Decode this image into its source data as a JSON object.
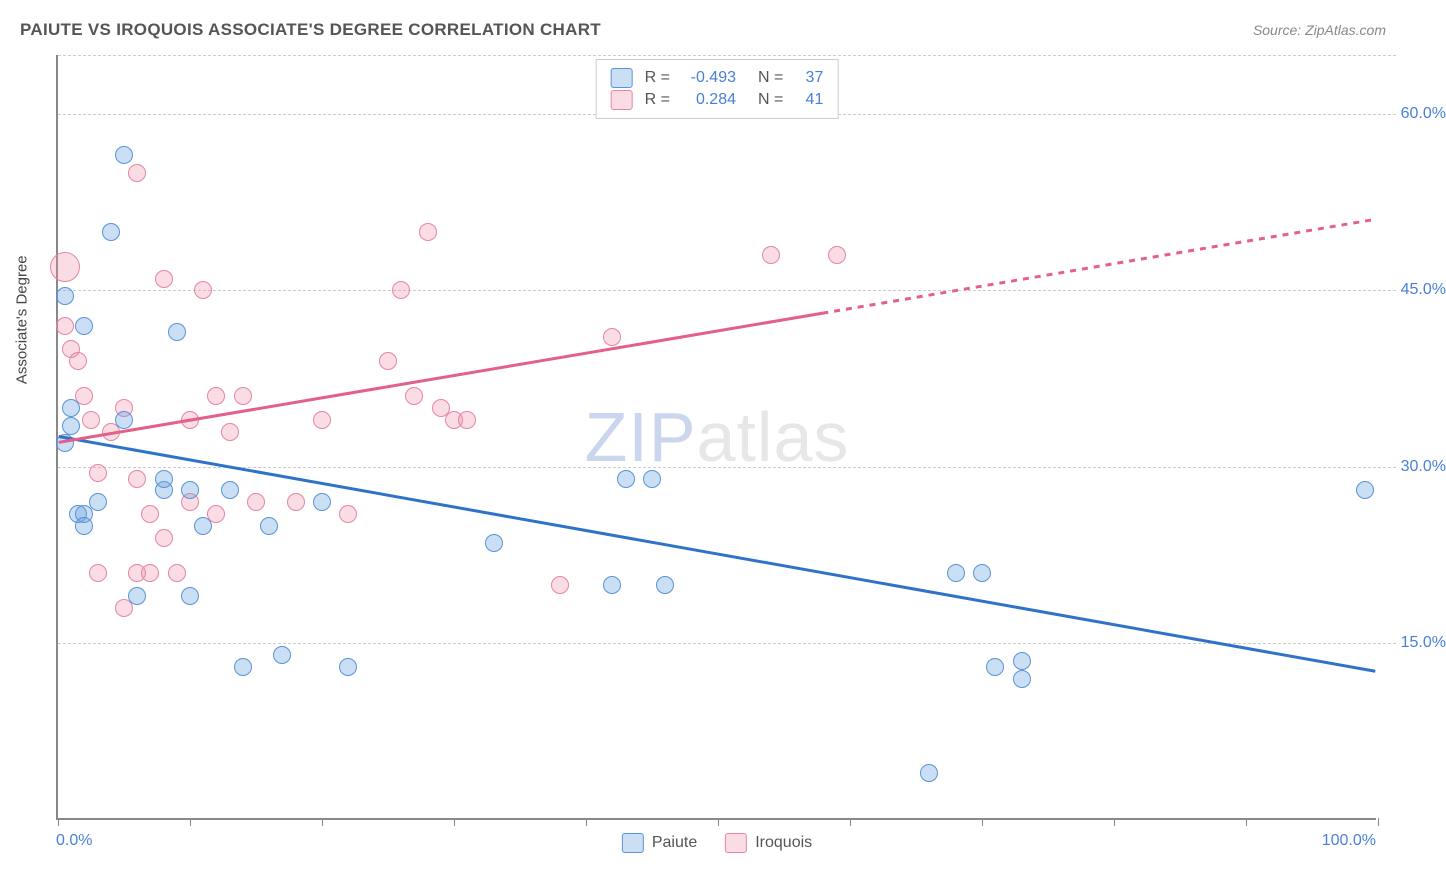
{
  "title": "PAIUTE VS IROQUOIS ASSOCIATE'S DEGREE CORRELATION CHART",
  "source": "Source: ZipAtlas.com",
  "y_axis_title": "Associate's Degree",
  "x_axis": {
    "min": 0,
    "max": 100,
    "label_left": "0.0%",
    "label_right": "100.0%",
    "ticks": [
      0,
      10,
      20,
      30,
      40,
      50,
      60,
      70,
      80,
      90,
      100
    ]
  },
  "y_axis": {
    "min": 0,
    "max": 65,
    "grid": [
      15,
      30,
      45,
      60,
      65
    ],
    "labels": {
      "15": "15.0%",
      "30": "30.0%",
      "45": "45.0%",
      "60": "60.0%"
    }
  },
  "colors": {
    "paiute_fill": "rgba(102,163,224,0.35)",
    "paiute_stroke": "#5a93d6",
    "iroquois_fill": "rgba(236,140,164,0.30)",
    "iroquois_stroke": "#e686a0",
    "blue_line": "#2f73c9",
    "pink_line": "#e36088",
    "grid": "#cccccc",
    "axis": "#888888",
    "tick_text": "#4a7fd6"
  },
  "legend_top": [
    {
      "swatch_fill": "rgba(102,163,224,0.35)",
      "swatch_stroke": "#5a93d6",
      "r": "-0.493",
      "n": "37"
    },
    {
      "swatch_fill": "rgba(236,140,164,0.30)",
      "swatch_stroke": "#e686a0",
      "r": "0.284",
      "n": "41"
    }
  ],
  "legend_bottom": [
    {
      "label": "Paiute",
      "swatch_fill": "rgba(102,163,224,0.35)",
      "swatch_stroke": "#5a93d6"
    },
    {
      "label": "Iroquois",
      "swatch_fill": "rgba(236,140,164,0.30)",
      "swatch_stroke": "#e686a0"
    }
  ],
  "trend_lines": {
    "blue": {
      "x1": 0,
      "y1": 32.5,
      "x2": 100,
      "y2": 12.5
    },
    "pink_solid": {
      "x1": 0,
      "y1": 32.0,
      "x2": 58,
      "y2": 43.0
    },
    "pink_dash": {
      "x1": 58,
      "y1": 43.0,
      "x2": 100,
      "y2": 51.0
    }
  },
  "point_radius": 9,
  "series": {
    "paiute": [
      {
        "x": 0.5,
        "y": 44.5
      },
      {
        "x": 2,
        "y": 42
      },
      {
        "x": 1,
        "y": 33.5
      },
      {
        "x": 1,
        "y": 35
      },
      {
        "x": 1.5,
        "y": 26
      },
      {
        "x": 2,
        "y": 26
      },
      {
        "x": 2,
        "y": 25
      },
      {
        "x": 5,
        "y": 56.5
      },
      {
        "x": 4,
        "y": 50
      },
      {
        "x": 5,
        "y": 34
      },
      {
        "x": 6,
        "y": 19
      },
      {
        "x": 8,
        "y": 28
      },
      {
        "x": 8,
        "y": 29
      },
      {
        "x": 9,
        "y": 41.5
      },
      {
        "x": 10,
        "y": 28
      },
      {
        "x": 10,
        "y": 19
      },
      {
        "x": 11,
        "y": 25
      },
      {
        "x": 13,
        "y": 28
      },
      {
        "x": 14,
        "y": 13
      },
      {
        "x": 16,
        "y": 25
      },
      {
        "x": 17,
        "y": 14
      },
      {
        "x": 20,
        "y": 27
      },
      {
        "x": 22,
        "y": 13
      },
      {
        "x": 33,
        "y": 23.5
      },
      {
        "x": 42,
        "y": 20
      },
      {
        "x": 43,
        "y": 29
      },
      {
        "x": 45,
        "y": 29
      },
      {
        "x": 46,
        "y": 20
      },
      {
        "x": 68,
        "y": 21
      },
      {
        "x": 70,
        "y": 21
      },
      {
        "x": 71,
        "y": 13
      },
      {
        "x": 73,
        "y": 13.5
      },
      {
        "x": 73,
        "y": 12
      },
      {
        "x": 66,
        "y": 4
      },
      {
        "x": 99,
        "y": 28
      },
      {
        "x": 0.5,
        "y": 32
      },
      {
        "x": 3,
        "y": 27
      }
    ],
    "iroquois": [
      {
        "x": 0.5,
        "y": 47,
        "r": 15
      },
      {
        "x": 0.5,
        "y": 42
      },
      {
        "x": 1,
        "y": 40
      },
      {
        "x": 1.5,
        "y": 39
      },
      {
        "x": 2,
        "y": 36
      },
      {
        "x": 2.5,
        "y": 34
      },
      {
        "x": 3,
        "y": 21
      },
      {
        "x": 3,
        "y": 29.5
      },
      {
        "x": 4,
        "y": 33
      },
      {
        "x": 5,
        "y": 35
      },
      {
        "x": 5,
        "y": 18
      },
      {
        "x": 6,
        "y": 55
      },
      {
        "x": 6,
        "y": 29
      },
      {
        "x": 6,
        "y": 21
      },
      {
        "x": 7,
        "y": 21
      },
      {
        "x": 7,
        "y": 26
      },
      {
        "x": 8,
        "y": 46
      },
      {
        "x": 8,
        "y": 24
      },
      {
        "x": 9,
        "y": 21
      },
      {
        "x": 10,
        "y": 34
      },
      {
        "x": 10,
        "y": 27
      },
      {
        "x": 11,
        "y": 45
      },
      {
        "x": 12,
        "y": 36
      },
      {
        "x": 12,
        "y": 26
      },
      {
        "x": 13,
        "y": 33
      },
      {
        "x": 14,
        "y": 36
      },
      {
        "x": 15,
        "y": 27
      },
      {
        "x": 18,
        "y": 27
      },
      {
        "x": 20,
        "y": 34
      },
      {
        "x": 22,
        "y": 26
      },
      {
        "x": 25,
        "y": 39
      },
      {
        "x": 26,
        "y": 45
      },
      {
        "x": 27,
        "y": 36
      },
      {
        "x": 28,
        "y": 50
      },
      {
        "x": 29,
        "y": 35
      },
      {
        "x": 30,
        "y": 34
      },
      {
        "x": 31,
        "y": 34
      },
      {
        "x": 38,
        "y": 20
      },
      {
        "x": 42,
        "y": 41
      },
      {
        "x": 54,
        "y": 48
      },
      {
        "x": 59,
        "y": 48
      }
    ]
  },
  "watermark": {
    "zip": "ZIP",
    "atlas": "atlas"
  }
}
